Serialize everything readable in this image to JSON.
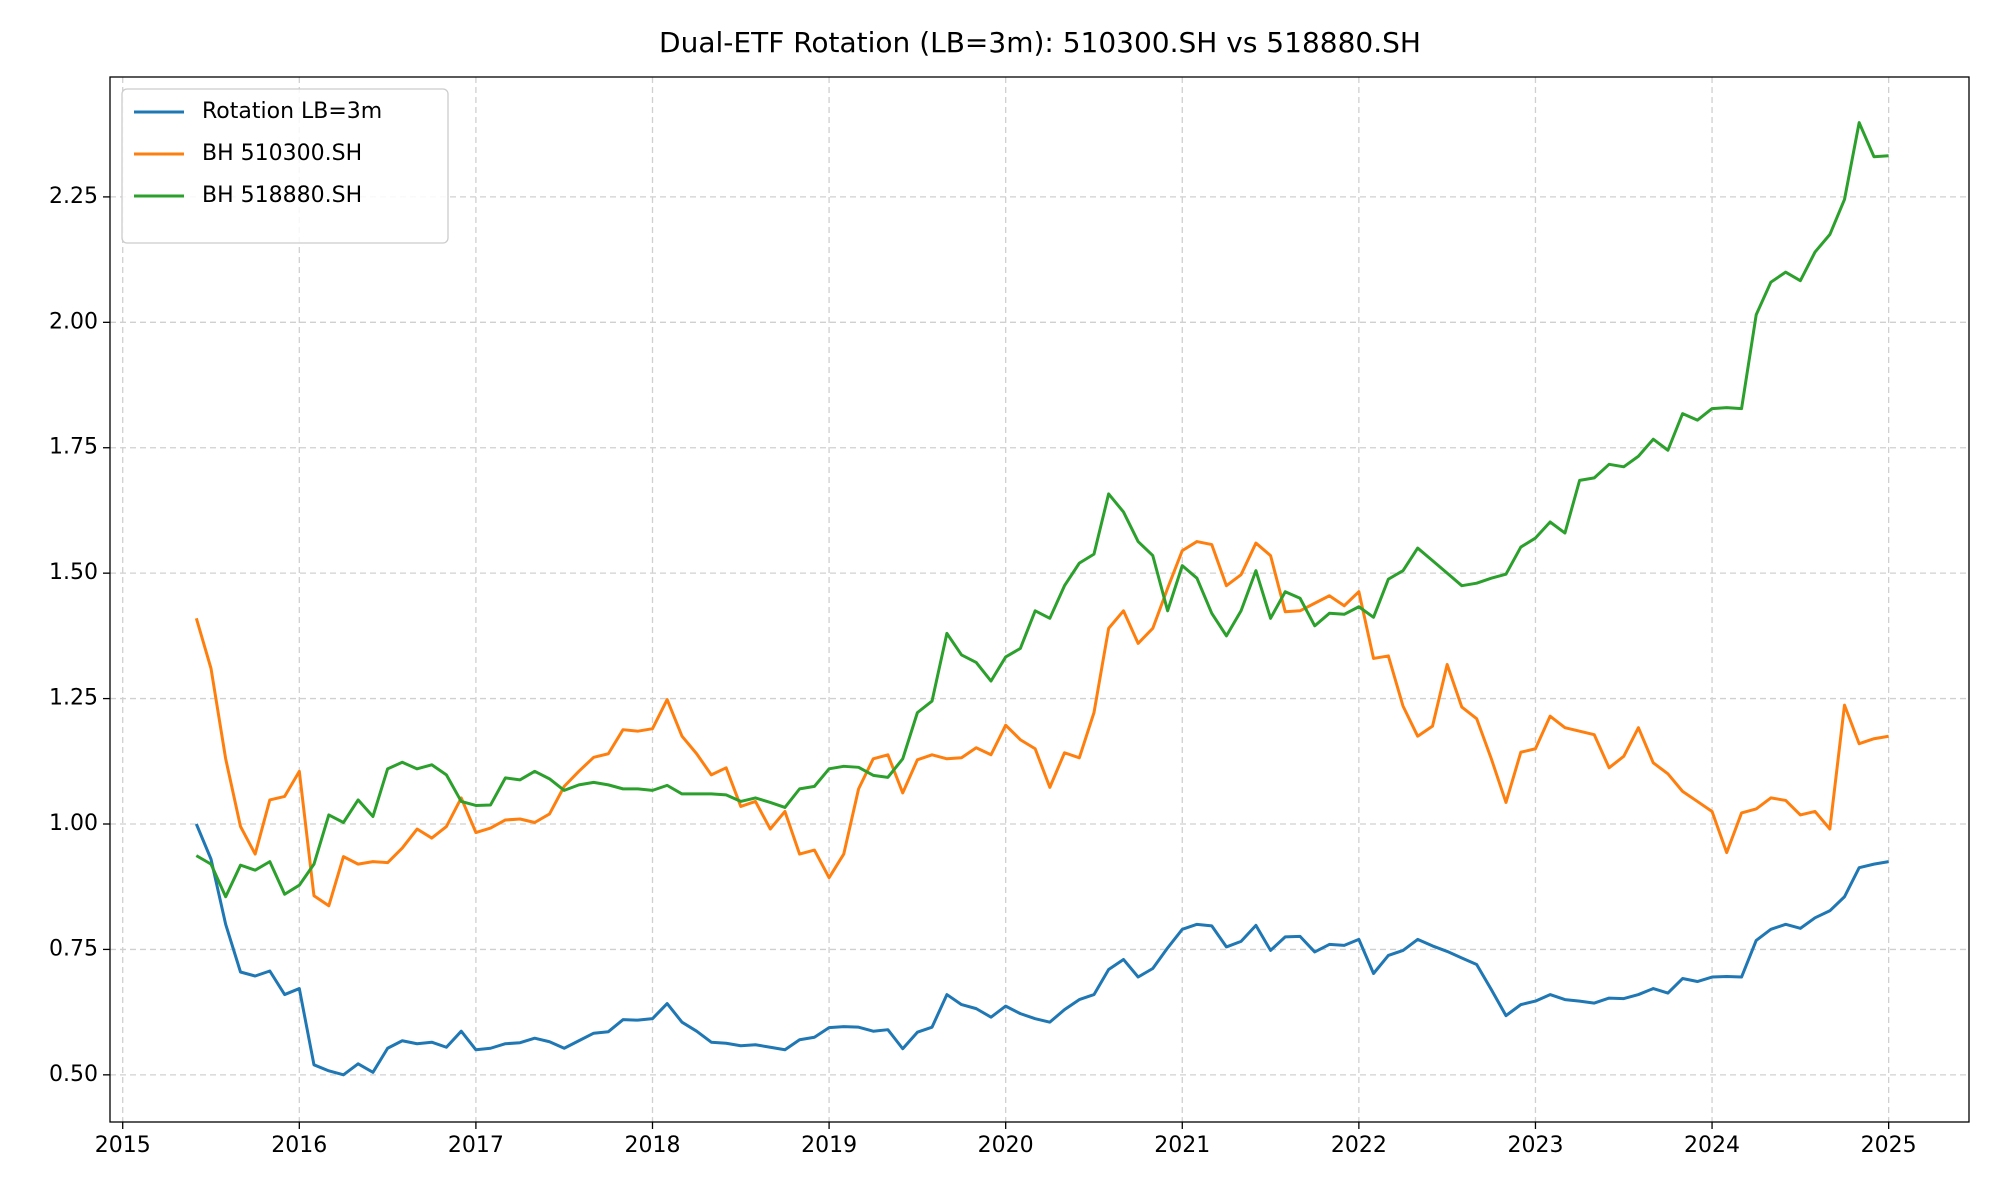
{
  "chart_data": {
    "type": "line",
    "title": "Dual-ETF Rotation (LB=3m): 510300.SH vs 518880.SH",
    "x": [
      2015.417,
      2015.5,
      2015.583,
      2015.667,
      2015.75,
      2015.833,
      2015.917,
      2016.0,
      2016.083,
      2016.167,
      2016.25,
      2016.333,
      2016.417,
      2016.5,
      2016.583,
      2016.667,
      2016.75,
      2016.833,
      2016.917,
      2017.0,
      2017.083,
      2017.167,
      2017.25,
      2017.333,
      2017.417,
      2017.5,
      2017.583,
      2017.667,
      2017.75,
      2017.833,
      2017.917,
      2018.0,
      2018.083,
      2018.167,
      2018.25,
      2018.333,
      2018.417,
      2018.5,
      2018.583,
      2018.667,
      2018.75,
      2018.833,
      2018.917,
      2019.0,
      2019.083,
      2019.167,
      2019.25,
      2019.333,
      2019.417,
      2019.5,
      2019.583,
      2019.667,
      2019.75,
      2019.833,
      2019.917,
      2020.0,
      2020.083,
      2020.167,
      2020.25,
      2020.333,
      2020.417,
      2020.5,
      2020.583,
      2020.667,
      2020.75,
      2020.833,
      2020.917,
      2021.0,
      2021.083,
      2021.167,
      2021.25,
      2021.333,
      2021.417,
      2021.5,
      2021.583,
      2021.667,
      2021.75,
      2021.833,
      2021.917,
      2022.0,
      2022.083,
      2022.167,
      2022.25,
      2022.333,
      2022.417,
      2022.5,
      2022.583,
      2022.667,
      2022.75,
      2022.833,
      2022.917,
      2023.0,
      2023.083,
      2023.167,
      2023.25,
      2023.333,
      2023.417,
      2023.5,
      2023.583,
      2023.667,
      2023.75,
      2023.833,
      2023.917,
      2024.0,
      2024.083,
      2024.167,
      2024.25,
      2024.333,
      2024.417,
      2024.5,
      2024.583,
      2024.667,
      2024.75,
      2024.833,
      2024.917,
      2025.0
    ],
    "series": [
      {
        "name": "Rotation LB=3m",
        "color": "#1f77b4",
        "values": [
          1.0,
          0.93,
          0.8,
          0.705,
          0.697,
          0.707,
          0.66,
          0.672,
          0.52,
          0.508,
          0.5,
          0.522,
          0.505,
          0.553,
          0.568,
          0.562,
          0.565,
          0.555,
          0.587,
          0.55,
          0.553,
          0.562,
          0.564,
          0.573,
          0.566,
          0.553,
          0.568,
          0.583,
          0.586,
          0.61,
          0.609,
          0.612,
          0.642,
          0.605,
          0.587,
          0.565,
          0.563,
          0.558,
          0.56,
          0.555,
          0.55,
          0.57,
          0.575,
          0.594,
          0.596,
          0.595,
          0.587,
          0.59,
          0.552,
          0.585,
          0.595,
          0.66,
          0.64,
          0.632,
          0.615,
          0.637,
          0.622,
          0.612,
          0.605,
          0.63,
          0.65,
          0.66,
          0.71,
          0.73,
          0.695,
          0.712,
          0.753,
          0.79,
          0.8,
          0.797,
          0.755,
          0.766,
          0.798,
          0.748,
          0.775,
          0.776,
          0.745,
          0.76,
          0.758,
          0.77,
          0.702,
          0.738,
          0.748,
          0.77,
          0.757,
          0.746,
          0.733,
          0.72,
          0.67,
          0.618,
          0.64,
          0.647,
          0.66,
          0.65,
          0.647,
          0.643,
          0.653,
          0.652,
          0.66,
          0.672,
          0.663,
          0.692,
          0.686,
          0.695,
          0.696,
          0.695,
          0.768,
          0.79,
          0.8,
          0.792,
          0.813,
          0.827,
          0.855,
          0.913,
          0.92,
          0.925
        ]
      },
      {
        "name": "BH 510300.SH",
        "color": "#ff7f0e",
        "values": [
          1.41,
          1.31,
          1.13,
          0.995,
          0.94,
          1.048,
          1.055,
          1.105,
          0.857,
          0.837,
          0.935,
          0.92,
          0.925,
          0.923,
          0.952,
          0.99,
          0.972,
          0.995,
          1.052,
          0.983,
          0.992,
          1.008,
          1.01,
          1.003,
          1.02,
          1.075,
          1.105,
          1.133,
          1.14,
          1.188,
          1.185,
          1.19,
          1.248,
          1.175,
          1.14,
          1.098,
          1.112,
          1.035,
          1.045,
          0.99,
          1.025,
          0.94,
          0.948,
          0.893,
          0.94,
          1.07,
          1.13,
          1.138,
          1.062,
          1.128,
          1.138,
          1.13,
          1.132,
          1.152,
          1.138,
          1.197,
          1.168,
          1.15,
          1.073,
          1.142,
          1.132,
          1.222,
          1.39,
          1.425,
          1.36,
          1.39,
          1.47,
          1.545,
          1.563,
          1.557,
          1.475,
          1.497,
          1.56,
          1.535,
          1.423,
          1.425,
          1.44,
          1.455,
          1.435,
          1.463,
          1.33,
          1.335,
          1.235,
          1.175,
          1.195,
          1.318,
          1.233,
          1.21,
          1.13,
          1.043,
          1.143,
          1.15,
          1.215,
          1.192,
          1.185,
          1.178,
          1.112,
          1.135,
          1.192,
          1.122,
          1.1,
          1.065,
          1.045,
          1.025,
          0.943,
          1.022,
          1.03,
          1.052,
          1.047,
          1.018,
          1.025,
          0.99,
          1.237,
          1.16,
          1.17,
          1.175
        ]
      },
      {
        "name": "BH 518880.SH",
        "color": "#2ca02c",
        "values": [
          0.937,
          0.92,
          0.855,
          0.918,
          0.908,
          0.925,
          0.86,
          0.878,
          0.92,
          1.018,
          1.003,
          1.048,
          1.015,
          1.11,
          1.123,
          1.11,
          1.118,
          1.098,
          1.045,
          1.037,
          1.038,
          1.092,
          1.088,
          1.105,
          1.09,
          1.067,
          1.078,
          1.083,
          1.078,
          1.07,
          1.07,
          1.067,
          1.077,
          1.06,
          1.06,
          1.06,
          1.058,
          1.045,
          1.052,
          1.043,
          1.033,
          1.07,
          1.075,
          1.11,
          1.115,
          1.113,
          1.097,
          1.093,
          1.13,
          1.222,
          1.245,
          1.38,
          1.337,
          1.322,
          1.285,
          1.333,
          1.35,
          1.425,
          1.41,
          1.475,
          1.52,
          1.538,
          1.658,
          1.622,
          1.563,
          1.535,
          1.425,
          1.515,
          1.49,
          1.42,
          1.375,
          1.425,
          1.505,
          1.41,
          1.463,
          1.45,
          1.395,
          1.42,
          1.418,
          1.433,
          1.412,
          1.488,
          1.505,
          1.55,
          1.525,
          1.5,
          1.475,
          1.48,
          1.49,
          1.498,
          1.552,
          1.57,
          1.602,
          1.58,
          1.685,
          1.69,
          1.717,
          1.712,
          1.733,
          1.767,
          1.745,
          1.818,
          1.805,
          1.828,
          1.83,
          1.828,
          2.015,
          2.08,
          2.1,
          2.083,
          2.14,
          2.175,
          2.245,
          2.398,
          2.33,
          2.332
        ]
      }
    ],
    "xlim": [
      2014.928,
      2025.455
    ],
    "xticks": [
      2015,
      2016,
      2017,
      2018,
      2019,
      2020,
      2021,
      2022,
      2023,
      2024,
      2025
    ],
    "ylim": [
      0.406,
      2.489
    ],
    "yticks": [
      {
        "value": 0.5,
        "label": "0.50"
      },
      0.75,
      {
        "value": 1,
        "label": "1.00"
      },
      1.25,
      {
        "value": 1.5,
        "label": "1.50"
      },
      1.75,
      {
        "value": 2,
        "label": "2.00"
      },
      2.25
    ],
    "grid": true,
    "legend": "upper left"
  }
}
